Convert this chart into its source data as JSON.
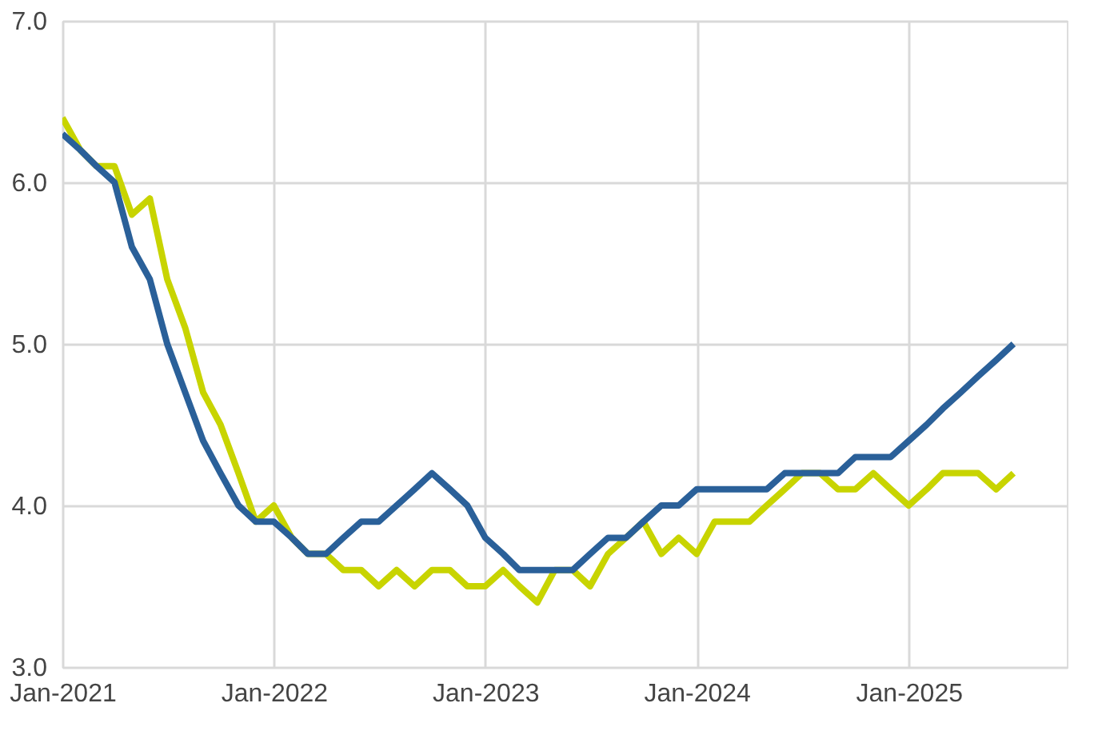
{
  "chart_data": {
    "type": "line",
    "x": [
      "2021-01",
      "2021-02",
      "2021-03",
      "2021-04",
      "2021-05",
      "2021-06",
      "2021-07",
      "2021-08",
      "2021-09",
      "2021-10",
      "2021-11",
      "2021-12",
      "2022-01",
      "2022-02",
      "2022-03",
      "2022-04",
      "2022-05",
      "2022-06",
      "2022-07",
      "2022-08",
      "2022-09",
      "2022-10",
      "2022-11",
      "2022-12",
      "2023-01",
      "2023-02",
      "2023-03",
      "2023-04",
      "2023-05",
      "2023-06",
      "2023-07",
      "2023-08",
      "2023-09",
      "2023-10",
      "2023-11",
      "2023-12",
      "2024-01",
      "2024-02",
      "2024-03",
      "2024-04",
      "2024-05",
      "2024-06",
      "2024-07",
      "2024-08",
      "2024-09",
      "2024-10",
      "2024-11",
      "2024-12",
      "2025-01",
      "2025-02",
      "2025-03",
      "2025-04",
      "2025-05",
      "2025-06",
      "2025-07"
    ],
    "series": [
      {
        "color": "#c8d400",
        "values": [
          6.4,
          6.2,
          6.1,
          6.1,
          5.8,
          5.9,
          5.4,
          5.1,
          4.7,
          4.5,
          4.2,
          3.9,
          4.0,
          3.8,
          3.7,
          3.7,
          3.6,
          3.6,
          3.5,
          3.6,
          3.5,
          3.6,
          3.6,
          3.5,
          3.5,
          3.6,
          3.5,
          3.4,
          3.6,
          3.6,
          3.5,
          3.7,
          3.8,
          3.9,
          3.7,
          3.8,
          3.7,
          3.9,
          3.9,
          3.9,
          4.0,
          4.1,
          4.2,
          4.2,
          4.1,
          4.1,
          4.2,
          4.1,
          4.0,
          4.1,
          4.2,
          4.2,
          4.2,
          4.1,
          4.2
        ]
      },
      {
        "color": "#2a6099",
        "values": [
          6.3,
          6.2,
          6.1,
          6.0,
          5.6,
          5.4,
          5.0,
          4.7,
          4.4,
          4.2,
          4.0,
          3.9,
          3.9,
          3.8,
          3.7,
          3.7,
          3.8,
          3.9,
          3.9,
          4.0,
          4.1,
          4.2,
          4.1,
          4.0,
          3.8,
          3.7,
          3.6,
          3.6,
          3.6,
          3.6,
          3.7,
          3.8,
          3.8,
          3.9,
          4.0,
          4.0,
          4.1,
          4.1,
          4.1,
          4.1,
          4.1,
          4.2,
          4.2,
          4.2,
          4.2,
          4.3,
          4.3,
          4.3,
          4.4,
          4.5,
          4.6,
          4.7,
          4.8,
          4.9,
          5.0
        ]
      }
    ],
    "xlim": [
      "2021-01",
      "2025-10"
    ],
    "xticks": [
      {
        "value": "2021-01",
        "label": "Jan-2021"
      },
      {
        "value": "2022-01",
        "label": "Jan-2022"
      },
      {
        "value": "2023-01",
        "label": "Jan-2023"
      },
      {
        "value": "2024-01",
        "label": "Jan-2024"
      },
      {
        "value": "2025-01",
        "label": "Jan-2025"
      }
    ],
    "ylim": [
      3.0,
      7.0
    ],
    "yticks": [
      {
        "value": 3.0,
        "label": "3.0"
      },
      {
        "value": 4.0,
        "label": "4.0"
      },
      {
        "value": 5.0,
        "label": "5.0"
      },
      {
        "value": 6.0,
        "label": "6.0"
      },
      {
        "value": 7.0,
        "label": "7.0"
      }
    ],
    "grid": true,
    "legend": false,
    "line_style": "solid",
    "marker": "none"
  }
}
